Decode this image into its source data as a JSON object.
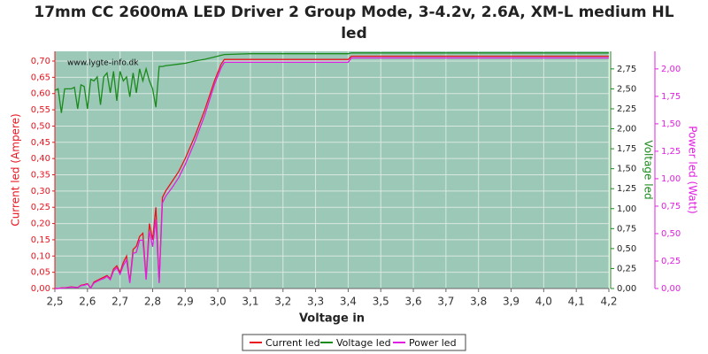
{
  "chart_data": {
    "type": "line",
    "title": "17mm CC 2600mA LED Driver 2 Group Mode, 3-4.2v, 2.6A, XM-L medium HL led",
    "watermark": "www.lygte-info.dk",
    "xlabel": "Voltage in",
    "ylabel": "Current led (Ampere)",
    "y2label": "Voltage led",
    "y3label": "Power led (Watt)",
    "background": "#9cc8b8",
    "grid": true,
    "legend": "bottom",
    "x": [
      2.5,
      2.51,
      2.52,
      2.53,
      2.55,
      2.56,
      2.57,
      2.58,
      2.59,
      2.6,
      2.61,
      2.62,
      2.63,
      2.64,
      2.65,
      2.66,
      2.67,
      2.68,
      2.69,
      2.7,
      2.71,
      2.72,
      2.73,
      2.74,
      2.75,
      2.76,
      2.77,
      2.78,
      2.79,
      2.8,
      2.81,
      2.82,
      2.83,
      2.84,
      2.86,
      2.88,
      2.9,
      2.93,
      2.96,
      2.99,
      3.01,
      3.02,
      3.1,
      3.3,
      3.4,
      3.41,
      3.5,
      4.2
    ],
    "xlim": [
      2.5,
      4.2
    ],
    "xticks": [
      {
        "value": 2.5,
        "label": "2,5"
      },
      {
        "value": 2.6,
        "label": "2,6"
      },
      {
        "value": 2.7,
        "label": "2,7"
      },
      {
        "value": 2.8,
        "label": "2,8"
      },
      {
        "value": 2.9,
        "label": "2,9"
      },
      {
        "value": 3.0,
        "label": "3,0"
      },
      {
        "value": 3.1,
        "label": "3,1"
      },
      {
        "value": 3.2,
        "label": "3,2"
      },
      {
        "value": 3.3,
        "label": "3,3"
      },
      {
        "value": 3.4,
        "label": "3,4"
      },
      {
        "value": 3.5,
        "label": "3,5"
      },
      {
        "value": 3.6,
        "label": "3,6"
      },
      {
        "value": 3.7,
        "label": "3,7"
      },
      {
        "value": 3.8,
        "label": "3,8"
      },
      {
        "value": 3.9,
        "label": "3,9"
      },
      {
        "value": 4.0,
        "label": "4,0"
      },
      {
        "value": 4.1,
        "label": "4,1"
      },
      {
        "value": 4.2,
        "label": "4,2"
      }
    ],
    "ylim": [
      0,
      0.73
    ],
    "yticks": [
      {
        "value": 0,
        "label": "0,00"
      },
      {
        "value": 0.05,
        "label": "0,05"
      },
      {
        "value": 0.1,
        "label": "0,10"
      },
      {
        "value": 0.15,
        "label": "0,15"
      },
      {
        "value": 0.2,
        "label": "0,20"
      },
      {
        "value": 0.25,
        "label": "0,25"
      },
      {
        "value": 0.3,
        "label": "0,30"
      },
      {
        "value": 0.35,
        "label": "0,35"
      },
      {
        "value": 0.4,
        "label": "0,40"
      },
      {
        "value": 0.45,
        "label": "0,45"
      },
      {
        "value": 0.5,
        "label": "0,50"
      },
      {
        "value": 0.55,
        "label": "0,55"
      },
      {
        "value": 0.6,
        "label": "0,60"
      },
      {
        "value": 0.65,
        "label": "0,65"
      },
      {
        "value": 0.7,
        "label": "0,70"
      }
    ],
    "y2lim": [
      0,
      2.97
    ],
    "y2ticks": [
      {
        "value": 0,
        "label": "0,00"
      },
      {
        "value": 0.25,
        "label": "0,25"
      },
      {
        "value": 0.5,
        "label": "0,50"
      },
      {
        "value": 0.75,
        "label": "0,75"
      },
      {
        "value": 1.0,
        "label": "1,00"
      },
      {
        "value": 1.25,
        "label": "1,25"
      },
      {
        "value": 1.5,
        "label": "1,50"
      },
      {
        "value": 1.75,
        "label": "1,75"
      },
      {
        "value": 2.0,
        "label": "2,00"
      },
      {
        "value": 2.25,
        "label": "2,25"
      },
      {
        "value": 2.5,
        "label": "2,50"
      },
      {
        "value": 2.75,
        "label": "2,75"
      }
    ],
    "y3lim": [
      0,
      2.16
    ],
    "y3ticks": [
      {
        "value": 0,
        "label": "0,00"
      },
      {
        "value": 0.25,
        "label": "0,25"
      },
      {
        "value": 0.5,
        "label": "0,50"
      },
      {
        "value": 0.75,
        "label": "0,75"
      },
      {
        "value": 1.0,
        "label": "1,00"
      },
      {
        "value": 1.25,
        "label": "1,25"
      },
      {
        "value": 1.5,
        "label": "1,50"
      },
      {
        "value": 1.75,
        "label": "1,75"
      },
      {
        "value": 2.0,
        "label": "2,00"
      }
    ],
    "series": [
      {
        "name": "Current led",
        "color": "#e8141e",
        "values": [
          0,
          0,
          0.002,
          0.002,
          0.005,
          0.004,
          0.003,
          0.01,
          0.012,
          0.015,
          0.002,
          0.02,
          0.025,
          0.03,
          0.035,
          0.04,
          0.03,
          0.06,
          0.07,
          0.05,
          0.08,
          0.1,
          0.02,
          0.12,
          0.13,
          0.16,
          0.17,
          0.03,
          0.2,
          0.15,
          0.25,
          0.02,
          0.28,
          0.3,
          0.33,
          0.36,
          0.4,
          0.47,
          0.55,
          0.64,
          0.69,
          0.705,
          0.705,
          0.705,
          0.705,
          0.715,
          0.715,
          0.715
        ]
      },
      {
        "name": "Voltage led",
        "color": "#1a8a1a",
        "axis": "y2",
        "values": [
          2.48,
          2.5,
          2.2,
          2.5,
          2.5,
          2.52,
          2.25,
          2.55,
          2.53,
          2.25,
          2.62,
          2.6,
          2.65,
          2.3,
          2.65,
          2.7,
          2.45,
          2.72,
          2.35,
          2.72,
          2.6,
          2.65,
          2.4,
          2.7,
          2.45,
          2.75,
          2.6,
          2.75,
          2.6,
          2.5,
          2.27,
          2.78,
          2.78,
          2.79,
          2.8,
          2.81,
          2.82,
          2.85,
          2.87,
          2.9,
          2.92,
          2.93,
          2.94,
          2.94,
          2.94,
          2.95,
          2.95,
          2.95
        ]
      },
      {
        "name": "Power led",
        "color": "#e020e0",
        "axis": "y3",
        "values": [
          0,
          0,
          0.004,
          0.005,
          0.012,
          0.01,
          0.008,
          0.025,
          0.03,
          0.04,
          0.005,
          0.05,
          0.066,
          0.08,
          0.09,
          0.11,
          0.08,
          0.16,
          0.19,
          0.13,
          0.21,
          0.26,
          0.05,
          0.32,
          0.33,
          0.44,
          0.44,
          0.08,
          0.52,
          0.38,
          0.63,
          0.05,
          0.78,
          0.84,
          0.92,
          1.01,
          1.13,
          1.34,
          1.58,
          1.86,
          2.01,
          2.06,
          2.06,
          2.06,
          2.06,
          2.1,
          2.1,
          2.1
        ]
      }
    ]
  }
}
